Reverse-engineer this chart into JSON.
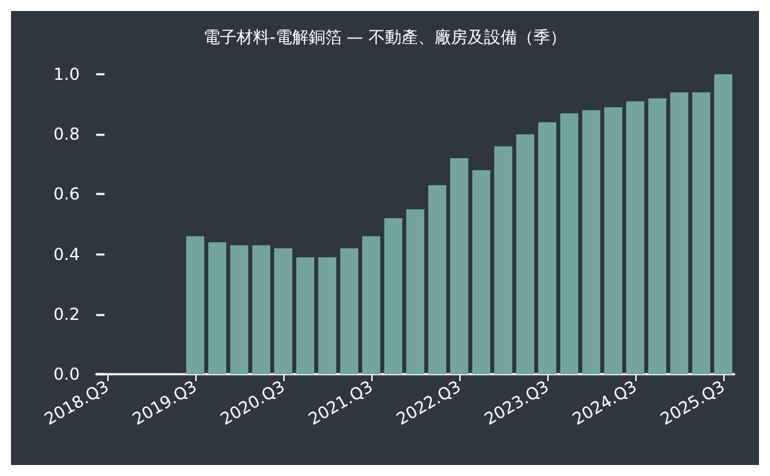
{
  "chart_data": {
    "type": "bar",
    "title": "電子材料-電解銅箔 — 不動產、廠房及設備（季）",
    "categories": [
      "2018.Q3",
      null,
      null,
      null,
      "2019.Q3",
      null,
      null,
      null,
      "2020.Q3",
      null,
      null,
      null,
      "2021.Q3",
      null,
      null,
      null,
      "2022.Q3",
      null,
      null,
      null,
      "2023.Q3",
      null,
      null,
      null,
      "2024.Q3",
      null,
      null,
      null,
      "2025.Q3"
    ],
    "values": [
      null,
      null,
      null,
      null,
      0.46,
      0.44,
      0.43,
      0.43,
      0.42,
      0.39,
      0.39,
      0.42,
      0.46,
      0.52,
      0.55,
      0.63,
      0.72,
      0.68,
      0.76,
      0.8,
      0.84,
      0.87,
      0.88,
      0.89,
      0.91,
      0.92,
      0.94,
      0.94,
      1.0
    ],
    "color": "#73a59e",
    "ylim": [
      0,
      1
    ],
    "yticks": [
      {
        "value": 0,
        "label": "0.0"
      },
      {
        "value": 0.2,
        "label": "0.2"
      },
      {
        "value": 0.4,
        "label": "0.4"
      },
      {
        "value": 0.6,
        "label": "0.6"
      },
      {
        "value": 0.8,
        "label": "0.8"
      },
      {
        "value": 1,
        "label": "1.0"
      }
    ],
    "grid": false
  }
}
